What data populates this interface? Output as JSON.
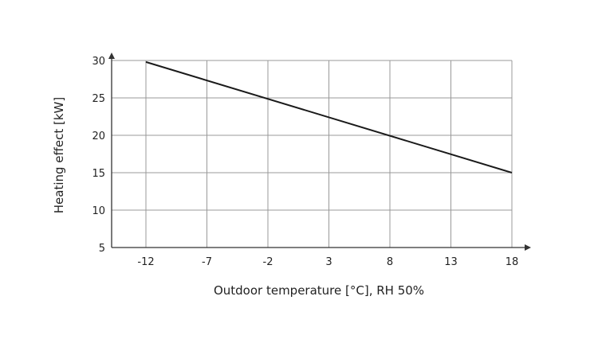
{
  "chart_data": {
    "type": "line",
    "title": "",
    "xlabel": "Outdoor temperature [°C], RH 50%",
    "ylabel": "Heating effect [kW]",
    "x_categories": [
      "-12",
      "-7",
      "-2",
      "3",
      "8",
      "13",
      "18"
    ],
    "y_ticks": [
      "30",
      "25",
      "20",
      "15",
      "10",
      "5"
    ],
    "ylim": [
      5,
      30
    ],
    "grid": true,
    "series": [
      {
        "x": [
          "-12",
          "18"
        ],
        "y": [
          29.8,
          15.0
        ]
      }
    ],
    "colors": {
      "line": "#1a1a1a",
      "grid": "#999999",
      "axis": "#333333"
    }
  }
}
